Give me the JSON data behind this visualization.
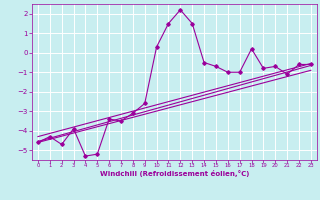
{
  "xlabel": "Windchill (Refroidissement éolien,°C)",
  "bg_color": "#c8eef0",
  "line_color": "#9b009b",
  "grid_color": "#ffffff",
  "x_ticks": [
    0,
    1,
    2,
    3,
    4,
    5,
    6,
    7,
    8,
    9,
    10,
    11,
    12,
    13,
    14,
    15,
    16,
    17,
    18,
    19,
    20,
    21,
    22,
    23
  ],
  "y_ticks": [
    -5,
    -4,
    -3,
    -2,
    -1,
    0,
    1,
    2
  ],
  "xlim": [
    -0.5,
    23.5
  ],
  "ylim": [
    -5.5,
    2.5
  ],
  "curve1_x": [
    0,
    1,
    2,
    3,
    4,
    5,
    6,
    7,
    8,
    9,
    10,
    11,
    12,
    13,
    14,
    15,
    16,
    17,
    18,
    19,
    20,
    21,
    22,
    23
  ],
  "curve1_y": [
    -4.6,
    -4.3,
    -4.7,
    -3.9,
    -5.3,
    -5.2,
    -3.4,
    -3.5,
    -3.1,
    -2.6,
    0.3,
    1.5,
    2.2,
    1.5,
    -0.5,
    -0.7,
    -1.0,
    -1.0,
    0.2,
    -0.8,
    -0.7,
    -1.1,
    -0.6,
    -0.6
  ],
  "trend1_x": [
    0,
    23
  ],
  "trend1_y": [
    -4.6,
    -0.9
  ],
  "trend2_x": [
    0,
    23
  ],
  "trend2_y": [
    -4.3,
    -0.55
  ],
  "trend3_x": [
    0,
    23
  ],
  "trend3_y": [
    -4.55,
    -0.65
  ]
}
